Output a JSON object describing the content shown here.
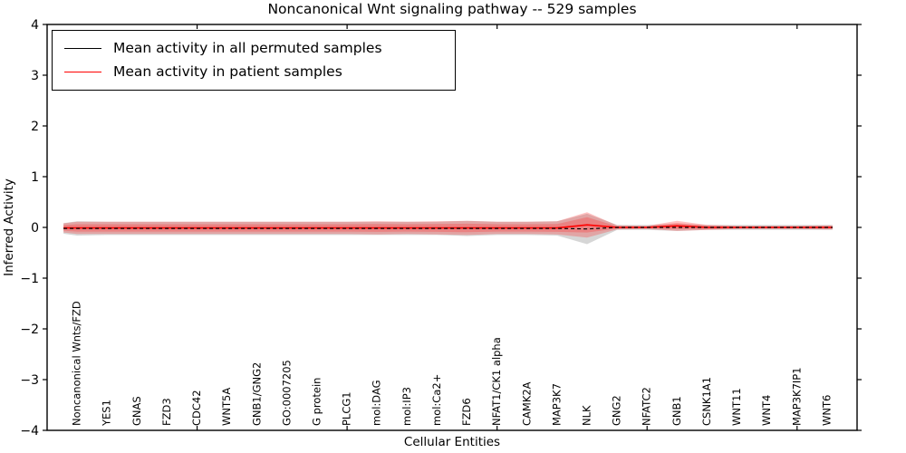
{
  "title": "Noncanonical Wnt signaling pathway -- 529 samples",
  "legend": {
    "items": [
      {
        "label": "Mean activity in all permuted samples",
        "color": "#000000"
      },
      {
        "label": "Mean activity in patient samples",
        "color": "#ff0000"
      }
    ]
  },
  "chart_data": {
    "type": "area",
    "title": "Noncanonical Wnt signaling pathway -- 529 samples",
    "xlabel": "Cellular Entities",
    "ylabel": "Inferred Activity",
    "ylim": [
      -4,
      4
    ],
    "xlim": [
      0,
      27
    ],
    "grid": false,
    "legend_position": "upper left",
    "ytick_values": [
      -4,
      -3,
      -2,
      -1,
      0,
      1,
      2,
      3,
      4
    ],
    "ytick_labels": [
      "−4",
      "−3",
      "−2",
      "−1",
      "0",
      "1",
      "2",
      "3",
      "4"
    ],
    "xtick_positions": [
      5,
      10,
      15,
      20,
      25
    ],
    "categories": [
      "Noncanonical Wnts/FZD",
      "YES1",
      "GNAS",
      "FZD3",
      "CDC42",
      "WNT5A",
      "GNB1/GNG2",
      "GO:0007205",
      "G protein",
      "PLCG1",
      "mol:DAG",
      "mol:IP3",
      "mol:Ca2+",
      "FZD6",
      "NFAT1/CK1 alpha",
      "CAMK2A",
      "MAP3K7",
      "NLK",
      "GNG2",
      "NFATC2",
      "GNB1",
      "CSNK1A1",
      "WNT11",
      "WNT4",
      "MAP3K7IP1",
      "WNT6"
    ],
    "series": [
      {
        "name": "Mean activity in all permuted samples",
        "kind": "band",
        "line_color": "#000000",
        "line_style": "dashed",
        "fill_color": "rgba(120,120,120,0.30)",
        "mean": [
          -0.02,
          -0.02,
          -0.02,
          -0.02,
          -0.02,
          -0.02,
          -0.02,
          -0.02,
          -0.02,
          -0.02,
          -0.02,
          -0.02,
          -0.02,
          -0.02,
          -0.02,
          -0.02,
          -0.02,
          -0.03,
          0,
          0,
          0,
          0,
          0,
          0,
          0,
          0
        ],
        "std": [
          0.14,
          0.13,
          0.13,
          0.13,
          0.13,
          0.13,
          0.13,
          0.13,
          0.13,
          0.13,
          0.13,
          0.13,
          0.13,
          0.15,
          0.13,
          0.13,
          0.14,
          0.3,
          0.05,
          0.05,
          0.07,
          0.05,
          0.05,
          0.05,
          0.05,
          0.05
        ]
      },
      {
        "name": "Mean activity in patient samples",
        "kind": "band",
        "line_color": "#ff0000",
        "line_style": "solid",
        "fill_color": "rgba(255,38,38,0.28)",
        "mean": [
          -0.01,
          -0.01,
          -0.01,
          -0.01,
          -0.01,
          -0.01,
          -0.01,
          -0.01,
          -0.01,
          -0.01,
          -0.01,
          -0.01,
          -0.01,
          -0.01,
          -0.01,
          -0.01,
          -0.01,
          0.05,
          0,
          0,
          0.03,
          0,
          0,
          0,
          0,
          0
        ],
        "std": [
          0.12,
          0.12,
          0.12,
          0.12,
          0.12,
          0.12,
          0.12,
          0.12,
          0.12,
          0.12,
          0.13,
          0.12,
          0.13,
          0.14,
          0.12,
          0.12,
          0.13,
          0.25,
          0.04,
          0.03,
          0.1,
          0.05,
          0.03,
          0.03,
          0.03,
          0.04
        ]
      }
    ]
  }
}
